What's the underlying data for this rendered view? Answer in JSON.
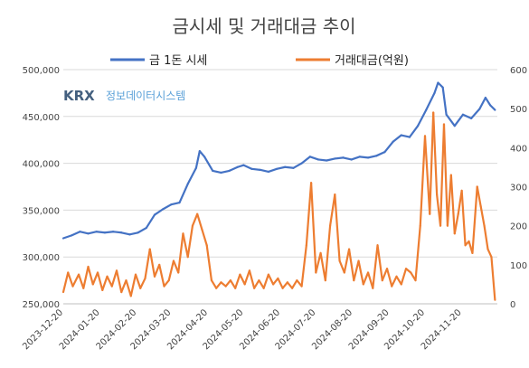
{
  "chart_data": {
    "type": "line",
    "title": "금시세 및 거래대금 추이",
    "watermark": {
      "logo": "KRX",
      "text": "정보데이터시스템"
    },
    "legend_position": "top",
    "grid": true,
    "y_left_lim": [
      250000,
      500000
    ],
    "y_right_lim": [
      0,
      600
    ],
    "x_date_range": [
      "2023-12-20",
      "2024-12-20"
    ],
    "x_tick_labels": [
      "2023-12-20",
      "2024-01-20",
      "2024-02-20",
      "2024-03-20",
      "2024-04-20",
      "2024-05-20",
      "2024-06-20",
      "2024-07-20",
      "2024-08-20",
      "2024-09-20",
      "2024-10-20",
      "2024-11-20"
    ],
    "y_left_tick_labels": [
      "250,000",
      "300,000",
      "350,000",
      "400,000",
      "450,000",
      "500,000"
    ],
    "y_right_tick_labels": [
      "0",
      "100",
      "200",
      "300",
      "400",
      "500",
      "600"
    ],
    "series": [
      {
        "name": "금 1돈 시세",
        "axis": "left",
        "color": "#4472c4",
        "points": [
          [
            "2023-12-20",
            320000
          ],
          [
            "2023-12-27",
            323000
          ],
          [
            "2024-01-03",
            327000
          ],
          [
            "2024-01-10",
            325000
          ],
          [
            "2024-01-17",
            327000
          ],
          [
            "2024-01-24",
            326000
          ],
          [
            "2024-01-31",
            327000
          ],
          [
            "2024-02-07",
            326000
          ],
          [
            "2024-02-14",
            324000
          ],
          [
            "2024-02-21",
            326000
          ],
          [
            "2024-02-28",
            331000
          ],
          [
            "2024-03-06",
            345000
          ],
          [
            "2024-03-13",
            351000
          ],
          [
            "2024-03-20",
            356000
          ],
          [
            "2024-03-27",
            358000
          ],
          [
            "2024-04-03",
            378000
          ],
          [
            "2024-04-10",
            395000
          ],
          [
            "2024-04-13",
            413000
          ],
          [
            "2024-04-17",
            407000
          ],
          [
            "2024-04-24",
            392000
          ],
          [
            "2024-05-01",
            390000
          ],
          [
            "2024-05-08",
            392000
          ],
          [
            "2024-05-15",
            396000
          ],
          [
            "2024-05-20",
            398000
          ],
          [
            "2024-05-27",
            394000
          ],
          [
            "2024-06-03",
            393000
          ],
          [
            "2024-06-10",
            391000
          ],
          [
            "2024-06-17",
            394000
          ],
          [
            "2024-06-24",
            396000
          ],
          [
            "2024-07-01",
            395000
          ],
          [
            "2024-07-08",
            400000
          ],
          [
            "2024-07-15",
            407000
          ],
          [
            "2024-07-22",
            404000
          ],
          [
            "2024-07-29",
            403000
          ],
          [
            "2024-08-05",
            405000
          ],
          [
            "2024-08-12",
            406000
          ],
          [
            "2024-08-19",
            404000
          ],
          [
            "2024-08-26",
            407000
          ],
          [
            "2024-09-02",
            406000
          ],
          [
            "2024-09-09",
            408000
          ],
          [
            "2024-09-16",
            412000
          ],
          [
            "2024-09-23",
            423000
          ],
          [
            "2024-09-30",
            430000
          ],
          [
            "2024-10-07",
            428000
          ],
          [
            "2024-10-14",
            440000
          ],
          [
            "2024-10-21",
            457000
          ],
          [
            "2024-10-28",
            475000
          ],
          [
            "2024-10-31",
            486000
          ],
          [
            "2024-11-04",
            481000
          ],
          [
            "2024-11-07",
            452000
          ],
          [
            "2024-11-14",
            440000
          ],
          [
            "2024-11-21",
            452000
          ],
          [
            "2024-11-28",
            448000
          ],
          [
            "2024-12-05",
            458000
          ],
          [
            "2024-12-10",
            470000
          ],
          [
            "2024-12-14",
            462000
          ],
          [
            "2024-12-18",
            457000
          ]
        ]
      },
      {
        "name": "거래대금(억원)",
        "axis": "right",
        "color": "#ed7d31",
        "points": [
          [
            "2023-12-20",
            30
          ],
          [
            "2023-12-24",
            80
          ],
          [
            "2023-12-28",
            45
          ],
          [
            "2024-01-02",
            75
          ],
          [
            "2024-01-06",
            40
          ],
          [
            "2024-01-10",
            95
          ],
          [
            "2024-01-14",
            50
          ],
          [
            "2024-01-18",
            80
          ],
          [
            "2024-01-22",
            35
          ],
          [
            "2024-01-26",
            70
          ],
          [
            "2024-01-30",
            45
          ],
          [
            "2024-02-03",
            85
          ],
          [
            "2024-02-07",
            30
          ],
          [
            "2024-02-11",
            60
          ],
          [
            "2024-02-15",
            20
          ],
          [
            "2024-02-19",
            75
          ],
          [
            "2024-02-23",
            40
          ],
          [
            "2024-02-27",
            65
          ],
          [
            "2024-03-02",
            140
          ],
          [
            "2024-03-06",
            70
          ],
          [
            "2024-03-10",
            100
          ],
          [
            "2024-03-14",
            45
          ],
          [
            "2024-03-18",
            60
          ],
          [
            "2024-03-22",
            110
          ],
          [
            "2024-03-26",
            80
          ],
          [
            "2024-03-30",
            180
          ],
          [
            "2024-04-03",
            120
          ],
          [
            "2024-04-07",
            200
          ],
          [
            "2024-04-11",
            230
          ],
          [
            "2024-04-15",
            190
          ],
          [
            "2024-04-19",
            150
          ],
          [
            "2024-04-23",
            60
          ],
          [
            "2024-04-27",
            40
          ],
          [
            "2024-05-01",
            55
          ],
          [
            "2024-05-05",
            45
          ],
          [
            "2024-05-09",
            60
          ],
          [
            "2024-05-13",
            40
          ],
          [
            "2024-05-17",
            75
          ],
          [
            "2024-05-21",
            50
          ],
          [
            "2024-05-25",
            85
          ],
          [
            "2024-05-29",
            40
          ],
          [
            "2024-06-02",
            60
          ],
          [
            "2024-06-06",
            40
          ],
          [
            "2024-06-10",
            75
          ],
          [
            "2024-06-14",
            50
          ],
          [
            "2024-06-18",
            65
          ],
          [
            "2024-06-22",
            40
          ],
          [
            "2024-06-26",
            55
          ],
          [
            "2024-06-30",
            40
          ],
          [
            "2024-07-04",
            60
          ],
          [
            "2024-07-08",
            45
          ],
          [
            "2024-07-12",
            150
          ],
          [
            "2024-07-16",
            310
          ],
          [
            "2024-07-20",
            80
          ],
          [
            "2024-07-24",
            130
          ],
          [
            "2024-07-28",
            60
          ],
          [
            "2024-08-01",
            200
          ],
          [
            "2024-08-05",
            280
          ],
          [
            "2024-08-09",
            110
          ],
          [
            "2024-08-13",
            80
          ],
          [
            "2024-08-17",
            140
          ],
          [
            "2024-08-21",
            60
          ],
          [
            "2024-08-25",
            110
          ],
          [
            "2024-08-29",
            50
          ],
          [
            "2024-09-02",
            80
          ],
          [
            "2024-09-06",
            40
          ],
          [
            "2024-09-10",
            150
          ],
          [
            "2024-09-14",
            60
          ],
          [
            "2024-09-18",
            90
          ],
          [
            "2024-09-22",
            45
          ],
          [
            "2024-09-26",
            70
          ],
          [
            "2024-09-30",
            50
          ],
          [
            "2024-10-04",
            90
          ],
          [
            "2024-10-08",
            80
          ],
          [
            "2024-10-12",
            60
          ],
          [
            "2024-10-16",
            200
          ],
          [
            "2024-10-20",
            430
          ],
          [
            "2024-10-24",
            230
          ],
          [
            "2024-10-27",
            490
          ],
          [
            "2024-10-30",
            280
          ],
          [
            "2024-11-02",
            200
          ],
          [
            "2024-11-05",
            460
          ],
          [
            "2024-11-08",
            200
          ],
          [
            "2024-11-11",
            330
          ],
          [
            "2024-11-14",
            180
          ],
          [
            "2024-11-17",
            230
          ],
          [
            "2024-11-20",
            290
          ],
          [
            "2024-11-23",
            150
          ],
          [
            "2024-11-26",
            160
          ],
          [
            "2024-11-29",
            130
          ],
          [
            "2024-12-03",
            300
          ],
          [
            "2024-12-06",
            250
          ],
          [
            "2024-12-09",
            200
          ],
          [
            "2024-12-12",
            140
          ],
          [
            "2024-12-15",
            120
          ],
          [
            "2024-12-18",
            10
          ]
        ]
      }
    ]
  }
}
